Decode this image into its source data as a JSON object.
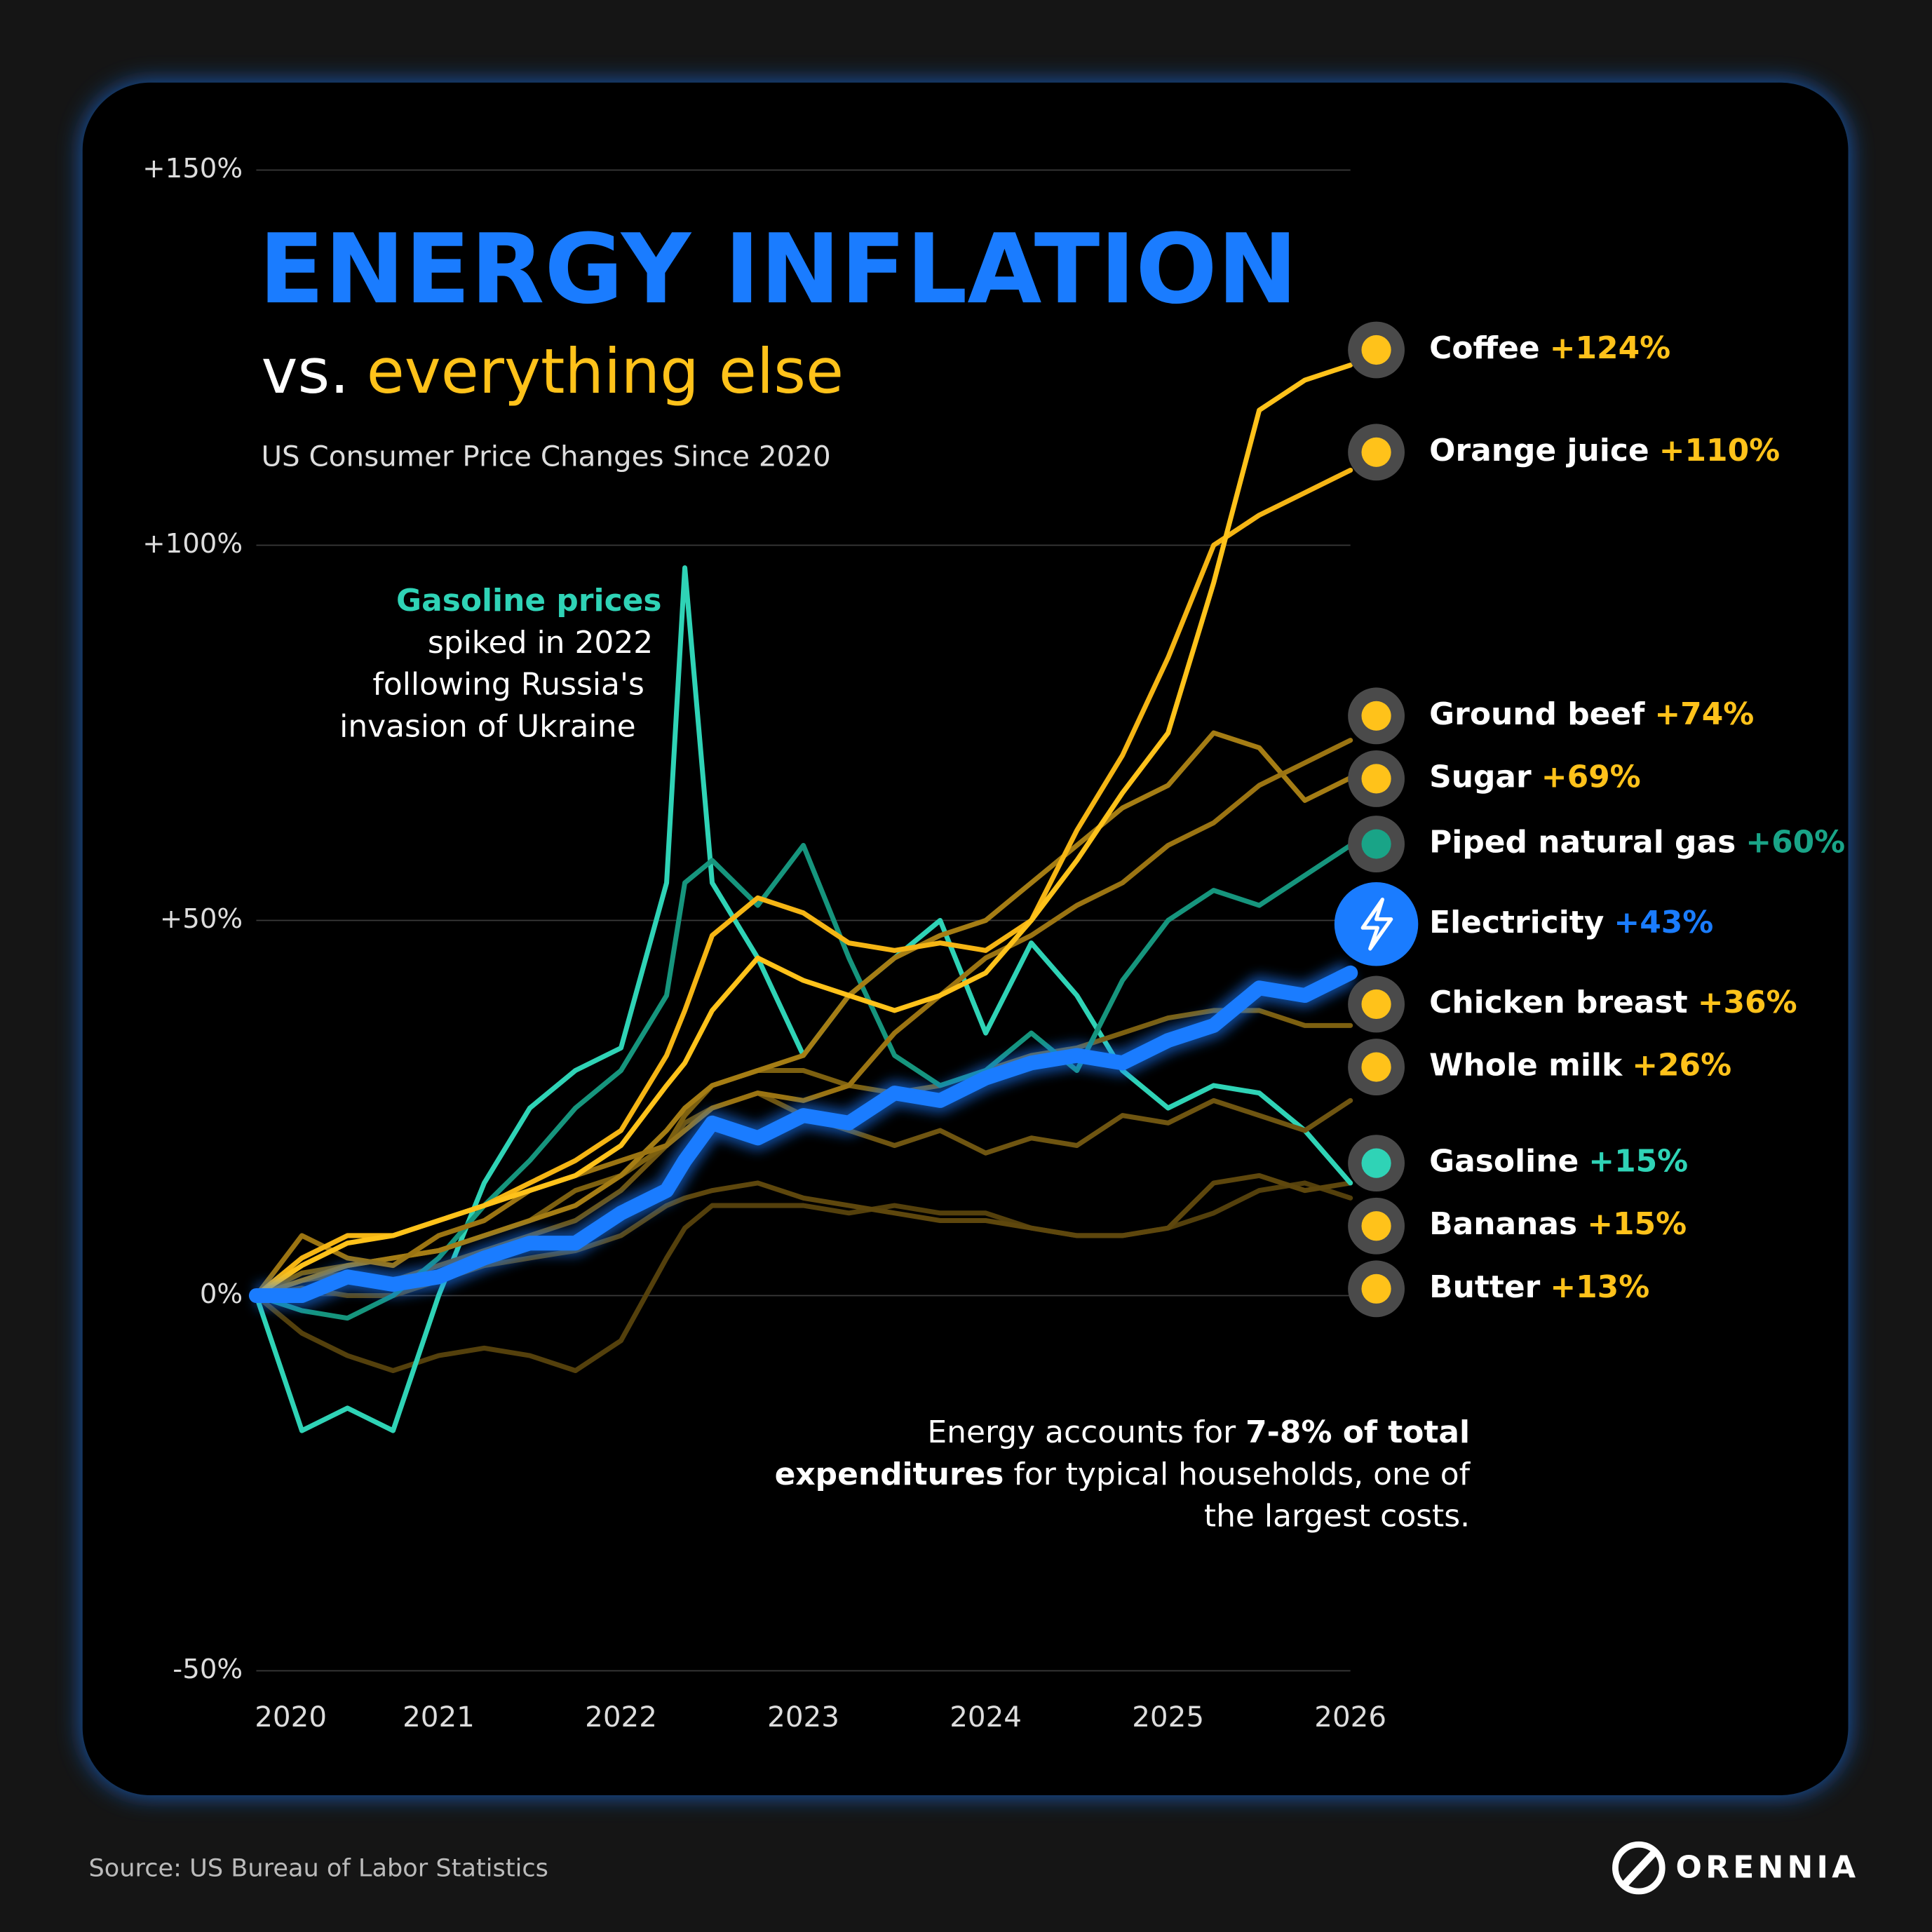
{
  "chart_data": {
    "type": "line",
    "title": "ENERGY INFLATION",
    "subtitle_prefix": "vs.",
    "subtitle": "everything else",
    "description": "US Consumer Price Changes Since 2020",
    "annotation": {
      "heading": "Gasoline prices",
      "lines": [
        "spiked in 2022",
        "following Russia's",
        "invasion of Ukraine"
      ]
    },
    "note_lines": [
      [
        {
          "text": "Energy accounts for ",
          "bold": false
        },
        {
          "text": "7-8% of total",
          "bold": true
        }
      ],
      [
        {
          "text": "expenditures",
          "bold": true
        },
        {
          "text": " for typical households, one of",
          "bold": false
        }
      ],
      [
        {
          "text": "the largest costs.",
          "bold": false
        }
      ]
    ],
    "source": "Source: US Bureau of Labor Statistics",
    "brand": "ORENNIA",
    "xlim": [
      2020,
      2026
    ],
    "xticks": [
      2020,
      2021,
      2022,
      2023,
      2024,
      2025,
      2026
    ],
    "ylim": [
      -50,
      150
    ],
    "yticks": [
      {
        "value": 150,
        "label": "+150%"
      },
      {
        "value": 100,
        "label": "+100%"
      },
      {
        "value": 50,
        "label": "+50%"
      },
      {
        "value": 0,
        "label": "0%"
      },
      {
        "value": -50,
        "label": "-50%"
      }
    ],
    "grid": true,
    "x": [
      2020,
      2020.25,
      2020.5,
      2020.75,
      2021,
      2021.25,
      2021.5,
      2021.75,
      2022,
      2022.25,
      2022.35,
      2022.5,
      2022.75,
      2023,
      2023.25,
      2023.5,
      2023.75,
      2024,
      2024.25,
      2024.5,
      2024.75,
      2025,
      2025.25,
      2025.5,
      2025.75,
      2026
    ],
    "series": [
      {
        "name": "Coffee",
        "change_label": "+124%",
        "color": "#ffc21a",
        "label_color": "#ffc21a",
        "values": [
          0,
          4,
          7,
          8,
          10,
          12,
          14,
          16,
          20,
          28,
          31,
          38,
          45,
          42,
          40,
          38,
          40,
          43,
          50,
          58,
          67,
          75,
          95,
          118,
          122,
          124
        ]
      },
      {
        "name": "Orange juice",
        "change_label": "+110%",
        "color": "#f5b514",
        "label_color": "#ffc21a",
        "values": [
          0,
          5,
          8,
          8,
          10,
          12,
          15,
          18,
          22,
          32,
          38,
          48,
          53,
          51,
          47,
          46,
          47,
          46,
          50,
          62,
          72,
          85,
          100,
          104,
          107,
          110
        ]
      },
      {
        "name": "Ground beef",
        "change_label": "+74%",
        "color": "#9b7412",
        "label_color": "#ffc21a",
        "values": [
          0,
          8,
          5,
          4,
          8,
          10,
          14,
          16,
          18,
          20,
          22,
          25,
          27,
          26,
          28,
          35,
          40,
          45,
          48,
          52,
          55,
          60,
          63,
          68,
          71,
          74
        ]
      },
      {
        "name": "Sugar",
        "change_label": "+69%",
        "color": "#a57d14",
        "label_color": "#ffc21a",
        "values": [
          0,
          2,
          4,
          5,
          6,
          8,
          10,
          12,
          16,
          22,
          25,
          28,
          30,
          32,
          40,
          45,
          48,
          50,
          55,
          60,
          65,
          68,
          75,
          73,
          66,
          69
        ]
      },
      {
        "name": "Piped natural gas",
        "change_label": "+60%",
        "color": "#16957d",
        "label_color": "#19a487",
        "values": [
          0,
          -2,
          -3,
          0,
          5,
          12,
          18,
          25,
          30,
          40,
          55,
          58,
          52,
          60,
          45,
          32,
          28,
          30,
          35,
          30,
          42,
          50,
          54,
          52,
          56,
          60
        ]
      },
      {
        "name": "Electricity",
        "change_label": "+43%",
        "color": "#1a7cff",
        "label_color": "#1a7cff",
        "highlight": true,
        "values": [
          0,
          0,
          2.5,
          1.5,
          2.5,
          5,
          7,
          7,
          11,
          14,
          18,
          23,
          21,
          24,
          23,
          27,
          26,
          29,
          31,
          32,
          31,
          34,
          36,
          41,
          40,
          43
        ]
      },
      {
        "name": "Chicken breast",
        "change_label": "+36%",
        "color": "#7d6010",
        "label_color": "#ffc21a",
        "values": [
          0,
          3,
          4,
          5,
          6,
          8,
          10,
          14,
          16,
          20,
          24,
          28,
          30,
          30,
          28,
          27,
          28,
          30,
          32,
          33,
          35,
          37,
          38,
          38,
          36,
          36
        ]
      },
      {
        "name": "Whole milk",
        "change_label": "+26%",
        "color": "#6f5511",
        "label_color": "#ffc21a",
        "values": [
          0,
          2,
          3,
          2,
          4,
          6,
          8,
          10,
          14,
          20,
          23,
          25,
          27,
          24,
          22,
          20,
          22,
          19,
          21,
          20,
          24,
          23,
          26,
          24,
          22,
          26
        ]
      },
      {
        "name": "Gasoline",
        "change_label": "+15%",
        "color": "#2fd3b6",
        "label_color": "#2fd3b6",
        "values": [
          0,
          -18,
          -15,
          -18,
          0,
          15,
          25,
          30,
          33,
          55,
          97,
          55,
          45,
          32,
          40,
          45,
          50,
          35,
          47,
          40,
          30,
          25,
          28,
          27,
          22,
          15
        ]
      },
      {
        "name": "Bananas",
        "change_label": "+15%",
        "color": "#5e470d",
        "label_color": "#ffc21a",
        "values": [
          0,
          1,
          0,
          0,
          2,
          4,
          5,
          6,
          8,
          12,
          13,
          14,
          15,
          13,
          12,
          11,
          10,
          10,
          9,
          8,
          8,
          9,
          15,
          16,
          14,
          15
        ]
      },
      {
        "name": "Butter",
        "change_label": "+13%",
        "color": "#54400c",
        "label_color": "#ffc21a",
        "values": [
          0,
          -5,
          -8,
          -10,
          -8,
          -7,
          -8,
          -10,
          -6,
          5,
          9,
          12,
          12,
          12,
          11,
          12,
          11,
          11,
          9,
          8,
          8,
          9,
          11,
          14,
          15,
          13
        ]
      }
    ]
  }
}
